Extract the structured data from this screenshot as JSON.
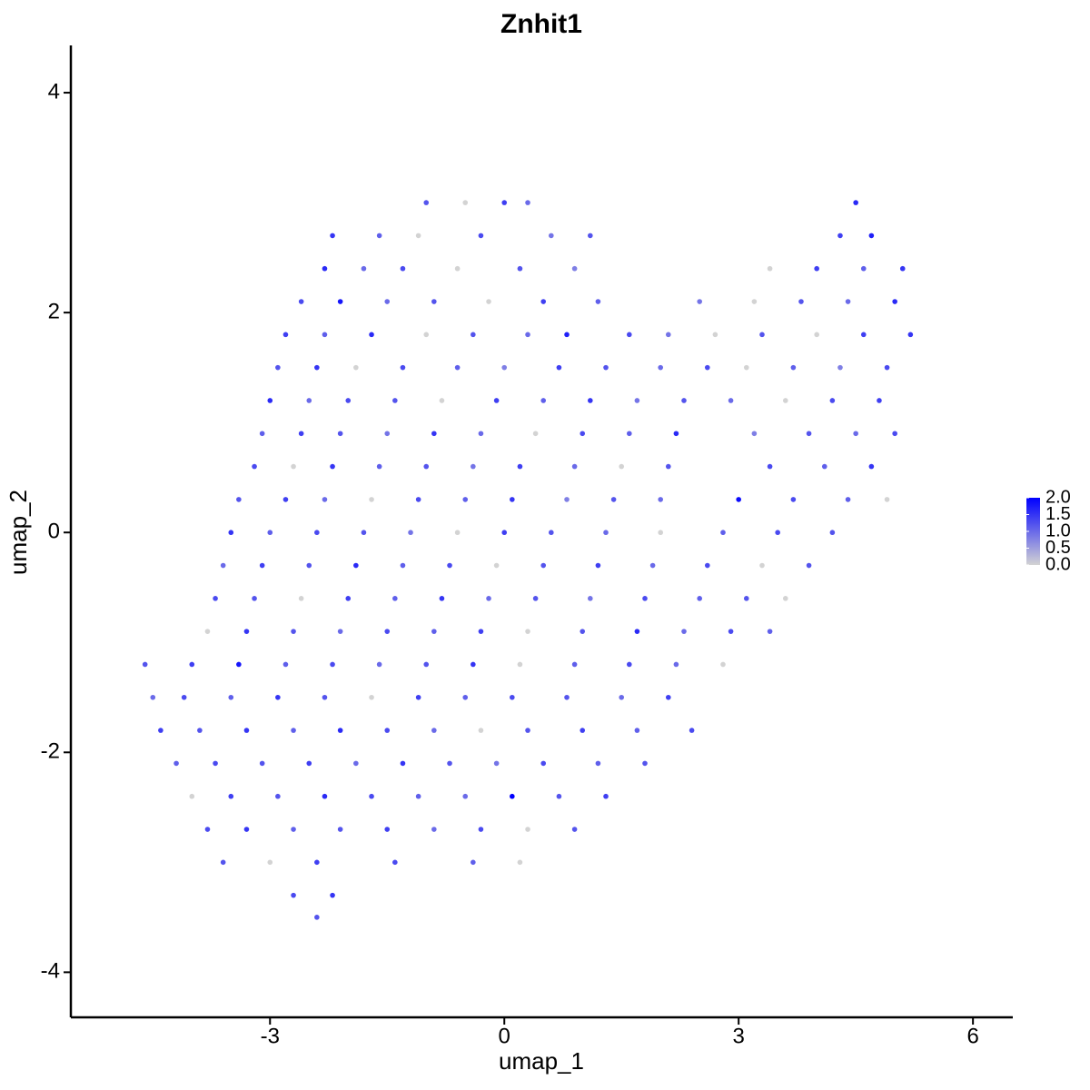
{
  "chart_data": {
    "type": "scatter",
    "title": "Znhit1",
    "x_label": "umap_1",
    "y_label": "umap_2",
    "xlim": [
      -5.55,
      6.51
    ],
    "ylim": [
      -4.41,
      4.43
    ],
    "xticks": [
      -3,
      0,
      3,
      6
    ],
    "yticks": [
      -4,
      -2,
      0,
      2,
      4
    ],
    "color_low": "#d3d3d3",
    "color_high": "#0000ff",
    "colorbar_lim": [
      0,
      2
    ],
    "colorbar_ticks": [
      {
        "value": 0,
        "label": "0.0"
      },
      {
        "value": 0.5,
        "label": "0.5"
      },
      {
        "value": 1,
        "label": "1.0"
      },
      {
        "value": 1.5,
        "label": "1.5"
      },
      {
        "value": 2,
        "label": "2.0"
      }
    ],
    "x": [
      -1.0,
      -0.5,
      0.0,
      0.3,
      4.5,
      -2.2,
      -1.6,
      -1.1,
      -0.3,
      0.6,
      1.1,
      4.3,
      4.7,
      -2.3,
      -1.8,
      -1.3,
      -0.6,
      0.2,
      0.9,
      3.4,
      4.0,
      4.6,
      5.1,
      -2.6,
      -2.1,
      -1.5,
      -0.9,
      -0.2,
      0.5,
      1.2,
      2.5,
      3.2,
      3.8,
      4.4,
      5.0,
      -2.8,
      -2.3,
      -1.7,
      -1.0,
      -0.4,
      0.3,
      0.8,
      1.6,
      2.1,
      2.7,
      3.3,
      4.0,
      4.6,
      5.2,
      -2.9,
      -2.4,
      -1.9,
      -1.3,
      -0.6,
      0.0,
      0.7,
      1.3,
      2.0,
      2.6,
      3.1,
      3.7,
      4.3,
      4.9,
      -3.0,
      -2.5,
      -2.0,
      -1.4,
      -0.8,
      -0.1,
      0.5,
      1.1,
      1.7,
      2.3,
      2.9,
      3.6,
      4.2,
      4.8,
      -3.1,
      -2.6,
      -2.1,
      -1.5,
      -0.9,
      -0.3,
      0.4,
      1.0,
      1.6,
      2.2,
      3.2,
      3.9,
      4.5,
      5.0,
      -3.2,
      -2.7,
      -2.2,
      -1.6,
      -1.0,
      -0.4,
      0.2,
      0.9,
      1.5,
      2.1,
      3.4,
      4.1,
      4.7,
      -3.4,
      -2.8,
      -2.3,
      -1.7,
      -1.1,
      -0.5,
      0.1,
      0.8,
      1.4,
      2.0,
      3.0,
      3.7,
      4.4,
      4.9,
      -3.5,
      -3.0,
      -2.4,
      -1.8,
      -1.2,
      -0.6,
      0.0,
      0.6,
      1.3,
      2.0,
      2.8,
      3.5,
      4.2,
      -3.6,
      -3.1,
      -2.5,
      -1.9,
      -1.3,
      -0.7,
      -0.1,
      0.5,
      1.2,
      1.9,
      2.6,
      3.3,
      3.9,
      -3.7,
      -3.2,
      -2.6,
      -2.0,
      -1.4,
      -0.8,
      -0.2,
      0.4,
      1.1,
      1.8,
      2.5,
      3.1,
      3.6,
      -3.8,
      -3.3,
      -2.7,
      -2.1,
      -1.5,
      -0.9,
      -0.3,
      0.3,
      1.0,
      1.7,
      2.3,
      2.9,
      3.4,
      -4.6,
      -4.0,
      -3.4,
      -2.8,
      -2.2,
      -1.6,
      -1.0,
      -0.4,
      0.2,
      0.9,
      1.6,
      2.2,
      2.8,
      -4.5,
      -4.1,
      -3.5,
      -2.9,
      -2.3,
      -1.7,
      -1.1,
      -0.5,
      0.1,
      0.8,
      1.5,
      2.1,
      -4.4,
      -3.9,
      -3.3,
      -2.7,
      -2.1,
      -1.5,
      -0.9,
      -0.3,
      0.3,
      1.0,
      1.7,
      2.4,
      -4.2,
      -3.7,
      -3.1,
      -2.5,
      -1.9,
      -1.3,
      -0.7,
      -0.1,
      0.5,
      1.2,
      1.8,
      -4.0,
      -3.5,
      -2.9,
      -2.3,
      -1.7,
      -1.1,
      -0.5,
      0.1,
      0.7,
      1.3,
      -3.8,
      -3.3,
      -2.7,
      -2.1,
      -1.5,
      -0.9,
      -0.3,
      0.3,
      0.9,
      -3.6,
      -3.0,
      -2.4,
      -1.4,
      -0.4,
      0.2,
      -2.7,
      -2.2,
      -2.4
    ],
    "y": [
      3.0,
      3.0,
      3.0,
      3.0,
      3.0,
      2.7,
      2.7,
      2.7,
      2.7,
      2.7,
      2.7,
      2.7,
      2.7,
      2.4,
      2.4,
      2.4,
      2.4,
      2.4,
      2.4,
      2.4,
      2.4,
      2.4,
      2.4,
      2.1,
      2.1,
      2.1,
      2.1,
      2.1,
      2.1,
      2.1,
      2.1,
      2.1,
      2.1,
      2.1,
      2.1,
      1.8,
      1.8,
      1.8,
      1.8,
      1.8,
      1.8,
      1.8,
      1.8,
      1.8,
      1.8,
      1.8,
      1.8,
      1.8,
      1.8,
      1.5,
      1.5,
      1.5,
      1.5,
      1.5,
      1.5,
      1.5,
      1.5,
      1.5,
      1.5,
      1.5,
      1.5,
      1.5,
      1.5,
      1.2,
      1.2,
      1.2,
      1.2,
      1.2,
      1.2,
      1.2,
      1.2,
      1.2,
      1.2,
      1.2,
      1.2,
      1.2,
      1.2,
      0.9,
      0.9,
      0.9,
      0.9,
      0.9,
      0.9,
      0.9,
      0.9,
      0.9,
      0.9,
      0.9,
      0.9,
      0.9,
      0.9,
      0.6,
      0.6,
      0.6,
      0.6,
      0.6,
      0.6,
      0.6,
      0.6,
      0.6,
      0.6,
      0.6,
      0.6,
      0.6,
      0.3,
      0.3,
      0.3,
      0.3,
      0.3,
      0.3,
      0.3,
      0.3,
      0.3,
      0.3,
      0.3,
      0.3,
      0.3,
      0.3,
      0.0,
      0.0,
      0.0,
      0.0,
      0.0,
      0.0,
      0.0,
      0.0,
      0.0,
      0.0,
      0.0,
      0.0,
      0.0,
      -0.3,
      -0.3,
      -0.3,
      -0.3,
      -0.3,
      -0.3,
      -0.3,
      -0.3,
      -0.3,
      -0.3,
      -0.3,
      -0.3,
      -0.3,
      -0.6,
      -0.6,
      -0.6,
      -0.6,
      -0.6,
      -0.6,
      -0.6,
      -0.6,
      -0.6,
      -0.6,
      -0.6,
      -0.6,
      -0.6,
      -0.9,
      -0.9,
      -0.9,
      -0.9,
      -0.9,
      -0.9,
      -0.9,
      -0.9,
      -0.9,
      -0.9,
      -0.9,
      -0.9,
      -0.9,
      -1.2,
      -1.2,
      -1.2,
      -1.2,
      -1.2,
      -1.2,
      -1.2,
      -1.2,
      -1.2,
      -1.2,
      -1.2,
      -1.2,
      -1.2,
      -1.5,
      -1.5,
      -1.5,
      -1.5,
      -1.5,
      -1.5,
      -1.5,
      -1.5,
      -1.5,
      -1.5,
      -1.5,
      -1.5,
      -1.8,
      -1.8,
      -1.8,
      -1.8,
      -1.8,
      -1.8,
      -1.8,
      -1.8,
      -1.8,
      -1.8,
      -1.8,
      -1.8,
      -2.1,
      -2.1,
      -2.1,
      -2.1,
      -2.1,
      -2.1,
      -2.1,
      -2.1,
      -2.1,
      -2.1,
      -2.1,
      -2.4,
      -2.4,
      -2.4,
      -2.4,
      -2.4,
      -2.4,
      -2.4,
      -2.4,
      -2.4,
      -2.4,
      -2.7,
      -2.7,
      -2.7,
      -2.7,
      -2.7,
      -2.7,
      -2.7,
      -2.7,
      -2.7,
      -3.0,
      -3.0,
      -3.0,
      -3.0,
      -3.0,
      -3.0,
      -3.3,
      -3.3,
      -3.5
    ],
    "values": [
      1.2,
      0,
      1.4,
      1.0,
      1.6,
      1.5,
      1.1,
      0,
      1.3,
      0.9,
      1.2,
      1.4,
      1.7,
      1.6,
      1.0,
      1.3,
      0,
      1.2,
      0.8,
      0,
      1.4,
      1.1,
      1.5,
      1.3,
      1.8,
      1.0,
      1.2,
      0,
      1.4,
      1.1,
      0.9,
      0,
      1.2,
      1.0,
      1.6,
      1.4,
      1.1,
      1.6,
      0,
      1.2,
      1.0,
      1.7,
      1.3,
      0.9,
      0,
      1.2,
      0,
      1.4,
      1.5,
      1.2,
      1.5,
      0,
      1.3,
      1.1,
      0.8,
      1.4,
      1.2,
      1.0,
      1.3,
      0,
      1.1,
      0.8,
      1.3,
      1.6,
      1.0,
      1.3,
      1.2,
      0,
      1.4,
      1.1,
      1.5,
      0.9,
      1.2,
      1.0,
      0,
      1.3,
      1.4,
      1.1,
      1.4,
      1.2,
      0.9,
      1.5,
      1.0,
      0,
      1.3,
      1.1,
      1.6,
      0.8,
      1.2,
      1.0,
      1.3,
      1.3,
      0,
      1.5,
      1.1,
      1.2,
      0.9,
      1.4,
      1.0,
      0,
      1.2,
      1.3,
      1.1,
      1.5,
      1.2,
      1.4,
      1.0,
      0,
      1.3,
      1.1,
      1.5,
      0.8,
      1.2,
      1.0,
      1.9,
      1.3,
      1.1,
      0,
      1.5,
      1.1,
      1.3,
      1.2,
      0.9,
      0,
      1.4,
      1.2,
      1.0,
      0,
      1.1,
      1.3,
      1.2,
      1.0,
      1.4,
      1.2,
      1.6,
      1.1,
      1.3,
      0,
      1.2,
      1.4,
      1.0,
      1.3,
      0,
      1.2,
      1.3,
      1.2,
      0,
      1.4,
      1.1,
      1.5,
      1.0,
      1.2,
      0.9,
      1.3,
      1.1,
      1.2,
      0,
      0,
      1.5,
      1.2,
      1.0,
      1.3,
      1.1,
      1.4,
      0,
      1.2,
      1.6,
      1.0,
      1.3,
      1.1,
      1.2,
      1.4,
      1.8,
      1.1,
      1.3,
      1.0,
      1.2,
      1.5,
      0,
      1.1,
      1.3,
      1.0,
      0,
      1.0,
      1.3,
      1.1,
      1.5,
      1.2,
      0,
      1.4,
      1.1,
      1.3,
      1.2,
      1.0,
      1.4,
      1.4,
      1.2,
      1.5,
      1.1,
      1.6,
      1.3,
      1.0,
      0,
      1.2,
      1.4,
      1.1,
      1.3,
      1.1,
      1.3,
      1.2,
      1.4,
      1.0,
      1.5,
      1.2,
      0.9,
      1.3,
      1.1,
      1.2,
      0,
      1.4,
      1.2,
      1.6,
      1.3,
      1.1,
      1.0,
      2.0,
      1.2,
      1.4,
      1.3,
      1.5,
      1.1,
      1.2,
      1.4,
      1.0,
      1.3,
      0,
      1.2,
      1.2,
      0,
      1.4,
      1.3,
      1.1,
      0,
      1.3,
      1.5,
      1.2
    ]
  }
}
